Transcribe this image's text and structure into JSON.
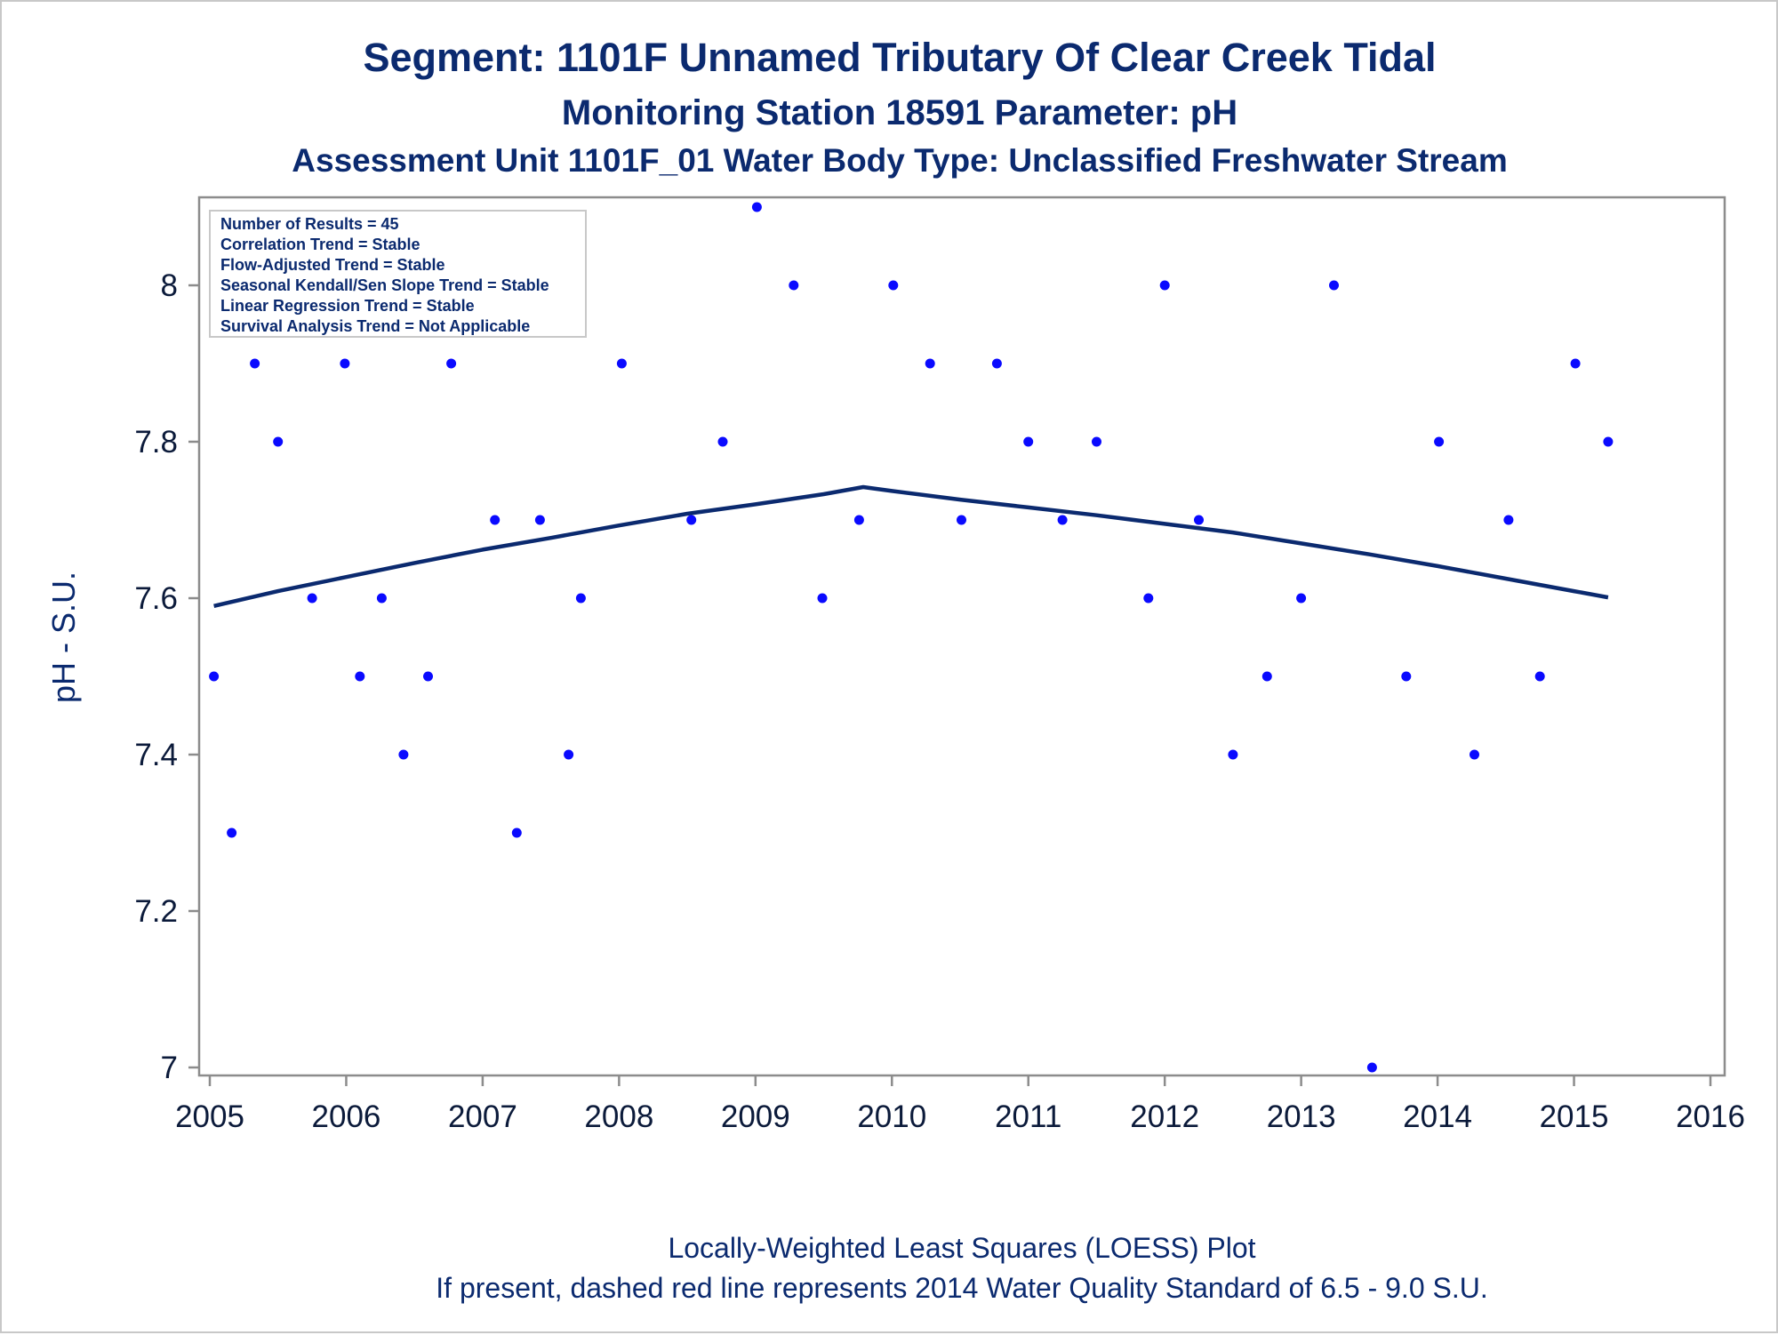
{
  "titles": {
    "line1": "Segment: 1101F  Unnamed Tributary Of Clear Creek Tidal",
    "line2": "Monitoring Station 18591 Parameter: pH",
    "line3": "Assessment Unit 1101F_01   Water Body Type: Unclassified Freshwater Stream"
  },
  "legend_box": {
    "lines": [
      "Number of Results = 45",
      "Correlation Trend = Stable",
      "Flow-Adjusted Trend = Stable",
      "Seasonal Kendall/Sen Slope Trend = Stable",
      "Linear Regression Trend = Stable",
      "Survival Analysis Trend = Not Applicable"
    ]
  },
  "footer": {
    "line1": "Locally-Weighted Least Squares (LOESS) Plot",
    "line2": "If present, dashed red line represents 2014 Water Quality Standard of 6.5 - 9.0 S.U."
  },
  "colors": {
    "points": "#0a0aff",
    "loess_line": "#0b2a6f",
    "axis": "#8c8c8c",
    "text": "#0b2a6f"
  },
  "chart_data": {
    "type": "scatter",
    "ylabel": "pH - S.U.",
    "xlabel": "",
    "xlim": [
      2005,
      2016
    ],
    "ylim": [
      6.98,
      8.1
    ],
    "x_ticks": [
      2005,
      2006,
      2007,
      2008,
      2009,
      2010,
      2011,
      2012,
      2013,
      2014,
      2015,
      2016
    ],
    "y_ticks": [
      7,
      7.2,
      7.4,
      7.6,
      7.8,
      8
    ],
    "y_tick_labels": [
      "7",
      "7.2",
      "7.4",
      "7.6",
      "7.8",
      "8"
    ],
    "grid": false,
    "legend_placement": "top-left",
    "series": [
      {
        "type": "scatter",
        "x": [
          2005.03,
          2005.16,
          2005.33,
          2005.5,
          2005.75,
          2005.99,
          2006.1,
          2006.26,
          2006.42,
          2006.6,
          2006.77,
          2007.09,
          2007.25,
          2007.42,
          2007.63,
          2007.72,
          2008.02,
          2008.53,
          2008.76,
          2009.01,
          2009.28,
          2009.49,
          2009.76,
          2010.01,
          2010.28,
          2010.51,
          2010.77,
          2011.0,
          2011.25,
          2011.5,
          2011.88,
          2012.0,
          2012.25,
          2012.5,
          2012.75,
          2013.0,
          2013.24,
          2013.52,
          2013.77,
          2014.01,
          2014.27,
          2014.52,
          2014.75,
          2015.01,
          2015.25
        ],
        "y": [
          7.5,
          7.3,
          7.9,
          7.8,
          7.6,
          7.9,
          7.5,
          7.6,
          7.4,
          7.5,
          7.9,
          7.7,
          7.3,
          7.7,
          7.4,
          7.6,
          7.9,
          7.7,
          7.8,
          8.1,
          8.0,
          7.6,
          7.7,
          8.0,
          7.9,
          7.7,
          7.9,
          7.8,
          7.7,
          7.8,
          7.6,
          8.0,
          7.7,
          7.4,
          7.5,
          7.6,
          8.0,
          7.0,
          7.5,
          7.8,
          7.4,
          7.7,
          7.5,
          7.9,
          7.8
        ]
      },
      {
        "type": "line",
        "x": [
          2005.03,
          2005.5,
          2006.0,
          2006.5,
          2007.0,
          2007.5,
          2008.0,
          2008.5,
          2009.0,
          2009.5,
          2009.79,
          2010.0,
          2010.5,
          2011.0,
          2011.5,
          2012.0,
          2012.5,
          2013.0,
          2013.5,
          2014.0,
          2014.5,
          2015.0,
          2015.25
        ],
        "y": [
          7.59,
          7.609,
          7.627,
          7.645,
          7.662,
          7.677,
          7.693,
          7.708,
          7.72,
          7.733,
          7.742,
          7.737,
          7.726,
          7.716,
          7.706,
          7.695,
          7.684,
          7.67,
          7.656,
          7.641,
          7.625,
          7.609,
          7.601
        ]
      }
    ]
  }
}
